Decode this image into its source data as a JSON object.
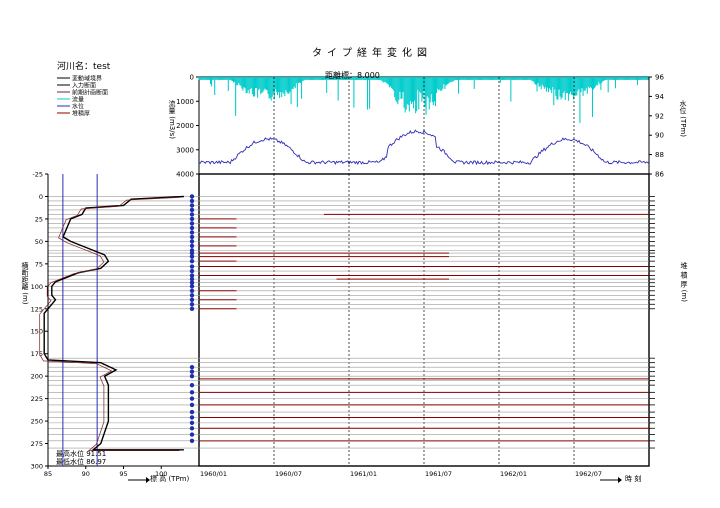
{
  "title": "タイプ経年変化図",
  "river_label": "河川名：test",
  "legend": [
    "変動域境界",
    "入力断面",
    "前期計画断面",
    "流量",
    "水位",
    "堆積厚"
  ],
  "legend_colors": [
    "#000000",
    "#000000",
    "#7f1d1d",
    "#00cccc",
    "#2d2db5",
    "#8b0000"
  ],
  "top_chart": {
    "station_label": "距離標：8.000",
    "left_axis_label": "流量 (m3/s)",
    "right_axis_label": "水位 (TPm)",
    "flow_ticks": [
      "0",
      "1000",
      "2000",
      "3000",
      "4000"
    ],
    "stage_ticks": [
      "96",
      "94",
      "92",
      "90",
      "88",
      "86"
    ]
  },
  "left_chart": {
    "y_axis_label": "横断距離 (m)",
    "x_axis_label": "標 高 (TPm)",
    "x_ticks": [
      "85",
      "90",
      "95",
      "100"
    ],
    "y_ticks": [
      "-25",
      "0",
      "25",
      "50",
      "75",
      "100",
      "125",
      "150",
      "175",
      "200",
      "225",
      "250",
      "275",
      "300"
    ],
    "high_water_note": "最高水位 91.51",
    "low_water_note": "最低水位 86.97"
  },
  "main_chart": {
    "x_ticks": [
      "1960/01",
      "1960/07",
      "1961/01",
      "1961/07",
      "1962/01",
      "1962/07"
    ],
    "x_axis_label": "時 刻",
    "right_axis_label": "堆 積 厚 (m)"
  },
  "colors": {
    "flow": "#00cccc",
    "stage": "#2d2db5",
    "deposit": "#8b0000",
    "section": "#000000",
    "dot": "#1f2fb0",
    "grid_gray": "#9a9a9a"
  },
  "chart_data": [
    {
      "type": "line",
      "title": "距離標：8.000",
      "x": [
        "1960/01",
        "1960/07",
        "1961/01",
        "1961/07",
        "1962/01",
        "1962/07"
      ],
      "series": [
        {
          "name": "流量",
          "axis": "left",
          "unit": "m3/s",
          "values": [
            150,
            700,
            250,
            1500,
            300,
            700
          ]
        },
        {
          "name": "水位",
          "axis": "right",
          "unit": "TPm",
          "values": [
            87.4,
            89.3,
            87.2,
            89.9,
            87.6,
            89.3
          ]
        }
      ],
      "ylim_left": [
        0,
        4000
      ],
      "ylim_right": [
        86,
        96
      ],
      "xlabel": "",
      "ylabel": "流量 (m3/s)"
    },
    {
      "type": "line",
      "title": "",
      "xlabel": "標 高 (TPm)",
      "ylabel": "横断距離 (m)",
      "xlim": [
        85,
        105
      ],
      "ylim": [
        -25,
        300
      ],
      "series": [
        {
          "name": "入力断面",
          "points": [
            [
              103,
              0
            ],
            [
              96,
              3
            ],
            [
              95,
              10
            ],
            [
              90,
              13
            ],
            [
              89.5,
              20
            ],
            [
              88,
              25
            ],
            [
              87.5,
              35
            ],
            [
              87,
              45
            ],
            [
              88,
              50
            ],
            [
              89.5,
              55
            ],
            [
              91,
              60
            ],
            [
              92.5,
              65
            ],
            [
              93,
              72
            ],
            [
              92,
              80
            ],
            [
              89,
              85
            ],
            [
              87.5,
              90
            ],
            [
              86,
              95
            ],
            [
              85.5,
              100
            ],
            [
              85.5,
              110
            ],
            [
              86,
              115
            ],
            [
              85.5,
              120
            ],
            [
              85,
              125
            ],
            [
              84.5,
              130
            ],
            [
              84.5,
              175
            ],
            [
              85,
              182
            ],
            [
              92,
              185
            ],
            [
              94,
              193
            ],
            [
              92.5,
              200
            ],
            [
              93,
              210
            ],
            [
              93,
              250
            ],
            [
              92,
              275
            ],
            [
              91,
              282
            ],
            [
              103,
              282
            ]
          ]
        }
      ],
      "reference_lines": [
        {
          "name": "最高水位",
          "value": 91.51
        },
        {
          "name": "最低水位",
          "value": 86.97
        }
      ]
    },
    {
      "type": "line",
      "title": "",
      "xlabel": "時 刻",
      "ylabel": "堆 積 厚 (m)",
      "x": [
        "1960/01",
        "1960/07",
        "1961/01",
        "1961/07",
        "1962/01",
        "1962/07"
      ],
      "series": [
        {
          "name": "堆積厚",
          "note": "each line is a constant deposit thickness at a cross-section distance",
          "lines": [
            {
              "distance": 20,
              "start": "1960/11",
              "end": "1962/12"
            },
            {
              "distance": 25,
              "start": "1960/01",
              "end": "1960/04"
            },
            {
              "distance": 35,
              "start": "1960/01",
              "end": "1960/04"
            },
            {
              "distance": 45,
              "start": "1960/01",
              "end": "1960/04"
            },
            {
              "distance": 55,
              "start": "1960/01",
              "end": "1960/04"
            },
            {
              "distance": 63,
              "start": "1960/01",
              "end": "1961/09"
            },
            {
              "distance": 67,
              "start": "1960/01",
              "end": "1961/09"
            },
            {
              "distance": 72,
              "start": "1960/01",
              "end": "1960/04"
            },
            {
              "distance": 78,
              "start": "1960/01",
              "end": "1962/12"
            },
            {
              "distance": 88,
              "start": "1960/01",
              "end": "1962/12"
            },
            {
              "distance": 92,
              "start": "1960/12",
              "end": "1961/09"
            },
            {
              "distance": 105,
              "start": "1960/01",
              "end": "1960/04"
            },
            {
              "distance": 115,
              "start": "1960/01",
              "end": "1960/04"
            },
            {
              "distance": 125,
              "start": "1960/01",
              "end": "1960/04"
            },
            {
              "distance": 203,
              "start": "1960/01",
              "end": "1962/12"
            },
            {
              "distance": 218,
              "start": "1960/01",
              "end": "1962/12"
            },
            {
              "distance": 232,
              "start": "1960/01",
              "end": "1962/12"
            },
            {
              "distance": 246,
              "start": "1960/01",
              "end": "1962/12"
            },
            {
              "distance": 258,
              "start": "1960/01",
              "end": "1962/12"
            },
            {
              "distance": 272,
              "start": "1960/01",
              "end": "1962/12"
            }
          ]
        }
      ]
    }
  ]
}
